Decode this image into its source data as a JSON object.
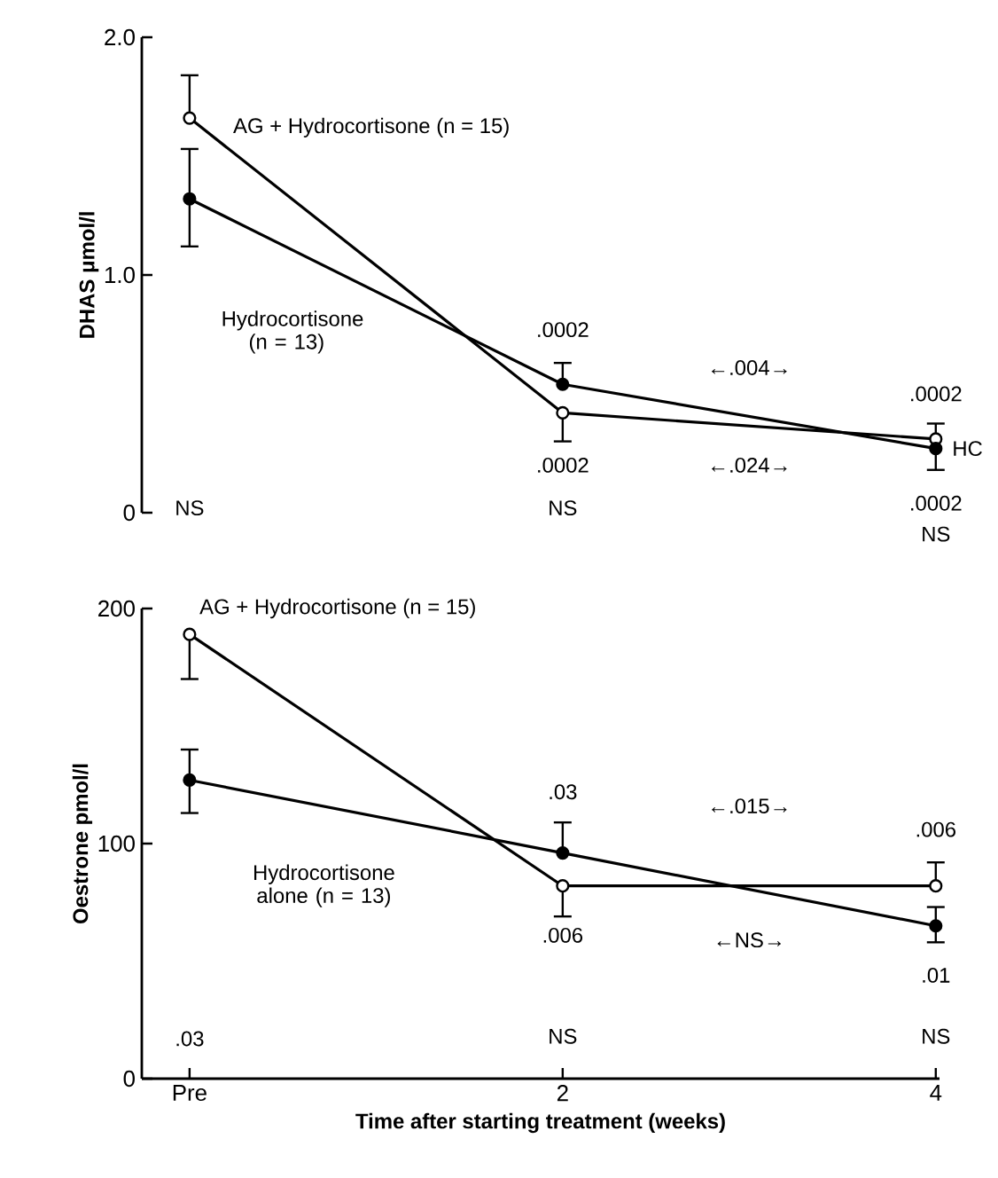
{
  "chart_data": [
    {
      "type": "line",
      "ylabel": "DHAS μmol/l",
      "categories": [
        null,
        null,
        null
      ],
      "ylim": [
        0,
        2
      ],
      "yticks": [
        0,
        {
          "value": 1,
          "label": "1.0"
        },
        {
          "value": 2,
          "label": "2.0"
        }
      ],
      "tick_labels": "y",
      "marker": "circle",
      "line_style": "solid",
      "series": [
        {
          "name": "AG + Hydrocortisone (n = 15)",
          "color": "#000000",
          "values": [
            1.66,
            0.42,
            0.31
          ],
          "errors": [
            [
              1.66,
              1.84
            ],
            [
              0.3,
              0.42
            ],
            [
              0.31,
              0.375
            ]
          ]
        },
        {
          "name": "Hydrocortisone (n = 13)",
          "color": "#000000",
          "values": [
            1.32,
            0.54,
            0.27
          ],
          "errors": [
            [
              1.12,
              1.53
            ],
            [
              0.54,
              0.63
            ],
            [
              0.18,
              0.27
            ]
          ]
        }
      ],
      "annotations": [
        "NS",
        ".0002",
        ".0002",
        "NS",
        "←.004→",
        "←.024→",
        ".0002",
        "HC",
        ".0002",
        "NS"
      ]
    },
    {
      "type": "line",
      "xlabel": "Time after starting treatment (weeks)",
      "ylabel": "Oestrone pmol/l",
      "categories": [
        "Pre",
        "2",
        "4"
      ],
      "ylim": [
        0,
        200
      ],
      "yticks": [
        0,
        100,
        200
      ],
      "marker": "circle",
      "line_style": "solid",
      "series": [
        {
          "name": "AG + Hydrocortisone (n = 15)",
          "color": "#000000",
          "values": [
            189,
            82,
            82
          ],
          "errors": [
            [
              170,
              189
            ],
            [
              69,
              82
            ],
            [
              82,
              92
            ]
          ]
        },
        {
          "name": "Hydrocortisone alone (n = 13)",
          "color": "#000000",
          "values": [
            127,
            96,
            65
          ],
          "errors": [
            [
              113,
              140
            ],
            [
              96,
              109
            ],
            [
              58,
              73
            ]
          ]
        }
      ],
      "annotations": [
        ".03",
        ".03",
        ".006",
        "NS",
        "←.015→",
        "←NS→",
        ".006",
        ".01",
        "NS"
      ]
    }
  ]
}
